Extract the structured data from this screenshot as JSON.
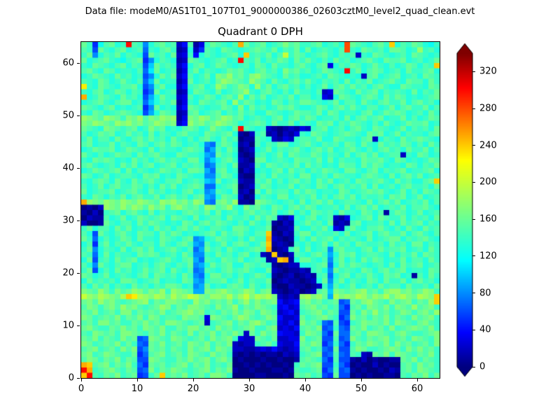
{
  "header": {
    "data_file_label": "Data file: modeM0/AS1T01_107T01_9000000386_02603cztM0_level2_quad_clean.evt"
  },
  "chart_data": {
    "type": "heatmap",
    "title": "Quadrant 0 DPH",
    "x_range": [
      0,
      64
    ],
    "y_range": [
      0,
      64
    ],
    "x_ticks": [
      0,
      10,
      20,
      30,
      40,
      50,
      60
    ],
    "y_ticks": [
      0,
      10,
      20,
      30,
      40,
      50,
      60
    ],
    "grid": false,
    "colormap": "jet",
    "colormap_stop_positions": [
      0,
      0.11,
      0.34,
      0.5,
      0.66,
      0.89,
      1
    ],
    "colormap_stop_colors": [
      "#00007f",
      "#0000ff",
      "#00ffff",
      "#7fff7f",
      "#ffff00",
      "#ff0000",
      "#7f0000"
    ],
    "colorbar": {
      "ticks": [
        0,
        40,
        80,
        120,
        160,
        200,
        240,
        280,
        320
      ],
      "vmin": 0,
      "vmax": 340,
      "extend": "both",
      "position": "right"
    },
    "grid_size": 64,
    "value_encoding": "each character is a base-36 digit; cell value = digit * 10 counts; rows listed top-to-bottom (y=63 first, y=0 last), 64 columns x=0..63 left-to-right; values are visual estimates",
    "rows": [
      "ge5cfgdeufe8dfgef24f13egfedfpgefgdefhfgeefgdefdsgfedfgeodfegfdce",
      "fe6gedfgdef7edfge12d25fedgfedefgfegdfegdgdefedfsedgfefdggfdeiefd",
      "eg8dfegdfed6gefdg23e4dfedefgdoefegdfkegfdefgedfef2edgfedefdgfede",
      "gdefgedcefg58dfed12gfedefgdeufegdfegfdgegedfdgefdefgedgffgdefdeg",
      "edgfedfgdfe6agefe24dfgdegfedefdgfdgeedfgedfg3dfegfdegedfdegfdfeo",
      "fgedgfdeedf7bgdef13egdfedegfgedfgefdhfgefdegfeduegdfgfdefdgeefgd",
      "degfedgefde68dgeg24fdegdhgifgehigfedgefddefdgfeded2fgdefgdefdgfe",
      "fedgfdegedf7agdee13gdefdgihgfeigfdgedfgegedfefdgdfegdefgedgffdge",
      "nedgfedffgd68egdd24efgdeigefhgdiegdfgefdfdegdfgegefdfgeddgfeedgf",
      "edfgdegfdfe57gdef12dgfedgdefgiedfgedfdgeedf23gfedgefgdfefedgdfeg",
      "pdegfedgefd69dgee23fdegfdfgeidgegdefegdffde32dgfedfgfdgegfdedefg",
      "defgedfggde7adfeg13edgfefgdiegfdedgfdfeggfedegdffdgedfgeegdfgefd",
      "gfedfgdedef58gded24gfedeegfdhdgefdegfgeddegfdfgegedffdegdfgeegdf",
      "edgfdefgfed69dgfe12fgdefgdfegefddgfedegffegdgfdeedfgdegfgfdefdge",
      "ihgfihgehgifhgihi13hgihfgihfgdefedfgdfgegfdeefdgdfgefgdeegdfdegf",
      "hgihgfihighfgihgh24ighfgihgfdefgfdgeegdfedgfgdfegfedfdgedegffgde",
      "gfedhgfefgdehfgdedfgfdehfedgufede21012132efgdefdfgedgfedegdfefdg",
      "fdegfgdegefdgdfedfgeedgfefgd102ef120213edgfedefgfedgfgdegdfeedfg",
      "egdffdgedfgegefdgedfdfgedgef011fed2132effegddgfeedfg2dfedgefgfed",
      "fgdeegdfedgfdfgegfdefd87egfd120fdfeggdefgedfefdgfdgedgefegfdfdge",
      "degffgdegfedgdfeedfgfe79fdge012degdfefgedfgegdefgedfdfgefdgeegdf",
      "gedfdegffdgefgeddgfeed98gefd101efdegdgfeegfdfedgdfgegdeff2edgfde",
      "edgfgfdedgefdfgefedggd8adfge210ggdefedgffegdgdfeedgffgedgfdedegf",
      "fgedefdgegdfgdefgdfefe78efdg112fdgfefegdgefdedgffdgegfdeedgfdfeg",
      "degfefgdgdfedegfefdggf97fgde021dedfgdgefdfegfedggedfgdfefgdeefgd",
      "gfdegdeffedgfgdedgfedd88egfd100efdgeefdggdefdgfeedfgfedgdfgegdef",
      "edfgfdgedgefgedffgdefea9gdef211fegdfdfgefdgegdefdgfefgedgefddfgo",
      "fdegdfgeegfdfdgegdefgf77defg012egfdeegdfedgfdfgefegdgdefdfgeefdg",
      "gdeffgdefgedgefdedfgde89fedg120gdgeffdgegfdeedgfdefgfgedegdfdgfe",
      "edgfdfegdfgeegdfgefdfg98dgfe201dfedggdefegdfdfgegdfeefdgfgdegdef",
      "pihgihgihgihgfihighfih87ghfi110hgfedefdgdfgegdeffedgdfgegdefegdf",
      "0102ihgigihfighehigfgeihfgiedhfgedgfdfgegfdeefdgdfgegdefegdffged",
      "1020efgdfgedgdfeedfgfegdgdefdfgefegdegdfdgfefdgeedgfdf1egfdegdef",
      "0211fdegdegfefgdgfedgdeffdgeefdgegf213edfgdef213defgdgfeegdfefdg",
      "2001gedffdgegfededgfdfgegfedfdgedf1021degefdg121fgdeefdgdgefgdfe",
      "egdffdgegdefdgefdfgegedffedggfdeeg0112fddfegd32egedffgedfdgedgef",
      "fd6gedfgedgffdgegfdedefgdgefgedffo1021eggdfeefdgdefgdfgeegdfgedf",
      "ge7dfdegfdgeedgfedfg89degfedfdgeep2101dfdgefgdfefedgdefggdfefged",
      "df5egdfegedffdgedfge98fdegdfgfdego1210edfdegdgefdgfeefdgefdggdfe",
      "eg8dfedgdfgegdefgedf79gefdgedefgfp012egdgdef8fgeedfgdgeffgdefdge",
      "fe7dgdfeedgfgfdefdge88edgefdfgde21o102fedfge9dgfgdeffedgdfegdgfe",
      "dg6efdgefgdedefgedfg97fedgfegdefe12op1dggedf8egdfdgegfdeegdffdge",
      "fd8gedfggdefdfgedfeg89dgefgddgfefe10122ddefg7dgegfedefdgdgefgdef",
      "eg6dfdgefdegefgdgedf78fedfgefgeddg2101121efd8gefedgfdfgefgdeedgf",
      "gfdegdefedfgdgfefdge87dggefdfdegfd10120121ef7dfgdfegedgfgde1fdge",
      "dgefefdggfdefgdeedgf98effgdegdfeeg01211012dg8egdfedgfdgeegdfgefd",
      "fdgegdfedgefdfeggfde89gdedfgfdgedf100211012e9fdegdefdgeffdgeefdg",
      "hgfigehfgihfhgieihgf99hghigfgihegh21012012fgahgfghifgehiighfgihe",
      "kihjihgjonjihjigjhikjhgiihjgikhjijh2121ijhig9jhihjigihjgijhgjiho",
      "ghfighfefghiegfhhgfeighfgfhegifhfgh4234ghfgefg67gfhigfehfghegfio",
      "fhgeghfighfefgihegfhhgfehfgiegfhgfe3423fghfgef75fgehgfhehgfifghe",
      "gfhefgehhegfgfhefghighefegfhfhgehgf2342efghegf66gehfifgefhgeghfi",
      "hgefgfhegfhehgeffehggf3hgfegihfefhg4223gefghfe57hfgegfhegfehfghe",
      "fgehhfgeegfhfgehhgfefg2efghegfhigef3242hfge76f65efhggfhehgfeghfe",
      "ghfeegfhfgehgfheegfhhfgehfgefgheegh2324fgfh67e76gfhefgehefghgfhe",
      "fehgfgehhgfegfhegfehegfhegfhf2gehfg4332ehgf75g77fgehhgfeghfeefgh",
      "gfhegfehfg67hgfehgfefgehfghe322gfeg2233hefg66f67hfegfghefgehgfeh",
      "hgefgfhege76gfhefgehgfhegfh2122efge3224gfhg57e75egfhgfhehfgefgeh",
      "fghefgehfh68gfgegfehfghehgf221123242123fgef76g66fhgeefghgehfhfge",
      "ghefhgfeeg57fghefgehgfehfge101010110212efgh67f76fe21gfhehgfegfhe",
      "fhgegfhegf66hgfeegfhfgheghf010001001001fgfe75f66102010011gfhegfe",
      "pofghegfhe75gfgefghegfhefeg00101010010egfgh66e75010020100fgehfge",
      "upefghfegf67hegfhgfefghegfh10010001101feefg57f67101001021fgehgfe",
      "oufegfhefg56egofgfhefgehhge00001100010gfgef65g66010100110fegfheg"
    ]
  }
}
